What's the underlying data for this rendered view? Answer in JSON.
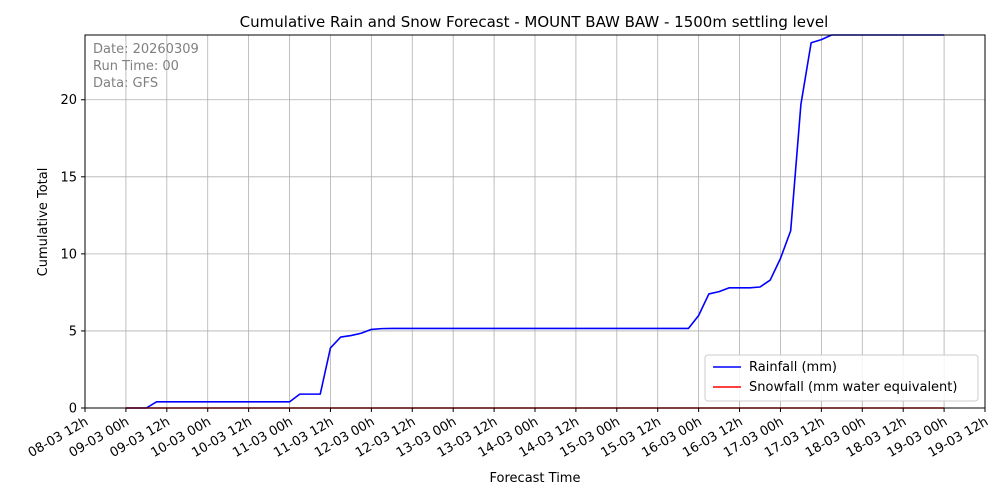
{
  "chart_data": {
    "type": "line",
    "title": "Cumulative Rain and Snow Forecast - MOUNT BAW BAW - 1500m settling level",
    "xlabel": "Forecast Time",
    "ylabel": "Cumulative Total",
    "xlim": [
      "08-03 12h",
      "19-03 12h"
    ],
    "ylim": [
      0,
      24.2
    ],
    "grid": true,
    "legend_position": "lower-right",
    "annotation_lines": [
      "Date: 20260309",
      "Run Time: 00",
      "Data: GFS"
    ],
    "x_ticks": [
      "08-03 12h",
      "09-03 00h",
      "09-03 12h",
      "10-03 00h",
      "10-03 12h",
      "11-03 00h",
      "11-03 12h",
      "12-03 00h",
      "12-03 12h",
      "13-03 00h",
      "13-03 12h",
      "14-03 00h",
      "14-03 12h",
      "15-03 00h",
      "15-03 12h",
      "16-03 00h",
      "16-03 12h",
      "17-03 00h",
      "17-03 12h",
      "18-03 00h",
      "18-03 12h",
      "19-03 00h",
      "19-03 12h"
    ],
    "y_ticks": [
      0,
      5,
      10,
      15,
      20
    ],
    "series": [
      {
        "name": "Rainfall (mm)",
        "color": "#0000ff",
        "points": [
          {
            "t": "09-03 00h",
            "v": 0
          },
          {
            "t": "09-03 06h",
            "v": 0
          },
          {
            "t": "09-03 09h",
            "v": 0.4
          },
          {
            "t": "10-03 00h",
            "v": 0.4
          },
          {
            "t": "11-03 00h",
            "v": 0.4
          },
          {
            "t": "11-03 03h",
            "v": 0.9
          },
          {
            "t": "11-03 09h",
            "v": 0.9
          },
          {
            "t": "11-03 12h",
            "v": 3.9
          },
          {
            "t": "11-03 15h",
            "v": 4.6
          },
          {
            "t": "11-03 18h",
            "v": 4.7
          },
          {
            "t": "11-03 21h",
            "v": 4.85
          },
          {
            "t": "12-03 00h",
            "v": 5.1
          },
          {
            "t": "12-03 03h",
            "v": 5.15
          },
          {
            "t": "12-03 06h",
            "v": 5.16
          },
          {
            "t": "15-03 21h",
            "v": 5.16
          },
          {
            "t": "16-03 00h",
            "v": 6.0
          },
          {
            "t": "16-03 03h",
            "v": 7.4
          },
          {
            "t": "16-03 06h",
            "v": 7.55
          },
          {
            "t": "16-03 09h",
            "v": 7.8
          },
          {
            "t": "16-03 15h",
            "v": 7.8
          },
          {
            "t": "16-03 18h",
            "v": 7.85
          },
          {
            "t": "16-03 21h",
            "v": 8.3
          },
          {
            "t": "17-03 00h",
            "v": 9.7
          },
          {
            "t": "17-03 03h",
            "v": 11.5
          },
          {
            "t": "17-03 06h",
            "v": 19.7
          },
          {
            "t": "17-03 09h",
            "v": 23.7
          },
          {
            "t": "17-03 12h",
            "v": 23.9
          },
          {
            "t": "17-03 15h",
            "v": 24.2
          },
          {
            "t": "19-03 00h",
            "v": 24.2
          }
        ]
      },
      {
        "name": "Snowfall (mm water equivalent)",
        "color": "#ff0000",
        "points": [
          {
            "t": "09-03 00h",
            "v": 0
          },
          {
            "t": "19-03 00h",
            "v": 0
          }
        ]
      }
    ]
  }
}
